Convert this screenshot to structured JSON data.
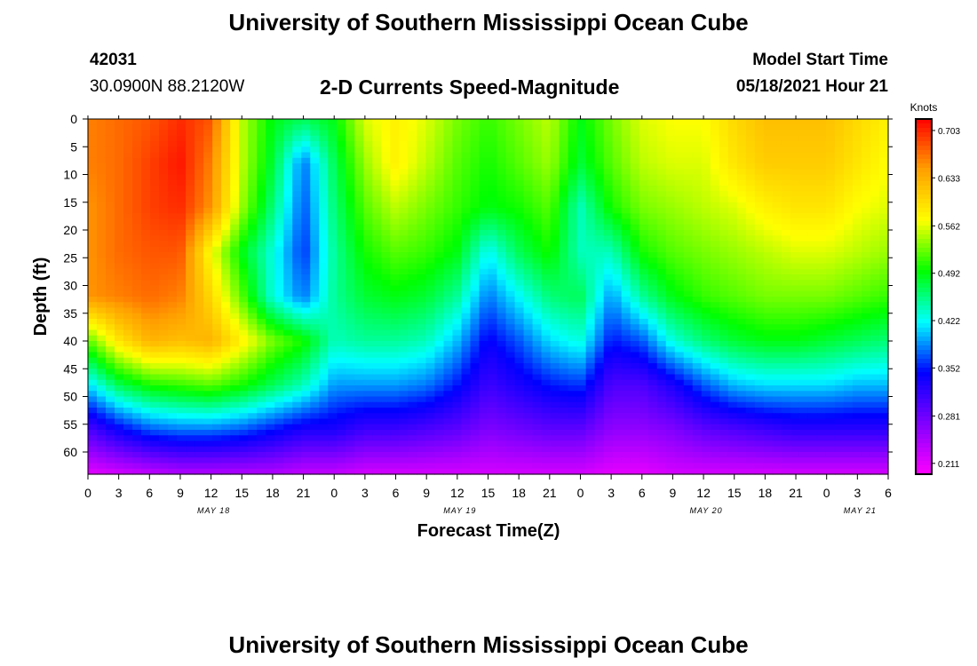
{
  "header": {
    "title": "University of Southern Mississippi Ocean Cube",
    "station_id": "42031",
    "coordinates": "30.0900N  88.2120W",
    "subtitle": "2-D Currents Speed-Magnitude",
    "model_start_label": "Model Start Time",
    "model_start_value": "05/18/2021 Hour 21"
  },
  "footer": {
    "title": "University of Southern Mississippi Ocean Cube"
  },
  "chart_data": {
    "type": "heatmap",
    "xlabel": "Forecast Time(Z)",
    "ylabel": "Depth (ft)",
    "x_tick_labels": [
      "0",
      "3",
      "6",
      "9",
      "12",
      "15",
      "18",
      "21",
      "0",
      "3",
      "6",
      "9",
      "12",
      "15",
      "18",
      "21",
      "0",
      "3",
      "6",
      "9",
      "12",
      "15",
      "18",
      "21",
      "0",
      "3",
      "6"
    ],
    "date_labels": [
      {
        "label": "MAY 18",
        "tick_index": 4
      },
      {
        "label": "MAY 19",
        "tick_index": 12
      },
      {
        "label": "MAY 20",
        "tick_index": 20
      },
      {
        "label": "MAY 21",
        "tick_index": 25
      }
    ],
    "x_range_hours": [
      0,
      78
    ],
    "y_ticks": [
      0,
      5,
      10,
      15,
      20,
      25,
      30,
      35,
      40,
      45,
      50,
      55,
      60
    ],
    "ylim": [
      0,
      64
    ],
    "y_inverted": true,
    "colorbar": {
      "unit": "Knots",
      "tick_labels": [
        "0.703",
        "0.633",
        "0.562",
        "0.492",
        "0.422",
        "0.352",
        "0.281",
        "0.211"
      ],
      "range": [
        0.195,
        0.72
      ],
      "colormap": [
        "#ff00ff",
        "#8000ff",
        "#0000ff",
        "#00ffff",
        "#00ff00",
        "#ffff00",
        "#ffa000",
        "#ff0000"
      ]
    },
    "depths_ft": [
      0,
      8,
      16,
      24,
      32,
      40,
      48,
      56,
      64
    ],
    "times_hours": [
      0,
      3,
      6,
      9,
      12,
      15,
      18,
      21,
      24,
      27,
      30,
      33,
      36,
      39,
      42,
      45,
      48,
      51,
      54,
      57,
      60,
      63,
      66,
      69,
      72,
      75,
      78
    ],
    "speed_knots": [
      [
        0.66,
        0.67,
        0.68,
        0.7,
        0.68,
        0.55,
        0.49,
        0.47,
        0.49,
        0.56,
        0.58,
        0.56,
        0.53,
        0.51,
        0.53,
        0.55,
        0.49,
        0.53,
        0.56,
        0.57,
        0.57,
        0.6,
        0.62,
        0.62,
        0.62,
        0.6,
        0.58
      ],
      [
        0.66,
        0.67,
        0.69,
        0.71,
        0.66,
        0.55,
        0.48,
        0.38,
        0.47,
        0.54,
        0.58,
        0.55,
        0.52,
        0.5,
        0.52,
        0.54,
        0.48,
        0.52,
        0.55,
        0.56,
        0.56,
        0.59,
        0.61,
        0.61,
        0.61,
        0.59,
        0.57
      ],
      [
        0.65,
        0.67,
        0.69,
        0.7,
        0.65,
        0.54,
        0.46,
        0.37,
        0.46,
        0.52,
        0.55,
        0.53,
        0.51,
        0.49,
        0.5,
        0.52,
        0.44,
        0.5,
        0.53,
        0.54,
        0.55,
        0.56,
        0.58,
        0.59,
        0.59,
        0.57,
        0.56
      ],
      [
        0.65,
        0.67,
        0.68,
        0.68,
        0.57,
        0.49,
        0.43,
        0.36,
        0.45,
        0.5,
        0.52,
        0.51,
        0.49,
        0.42,
        0.47,
        0.5,
        0.44,
        0.44,
        0.5,
        0.52,
        0.53,
        0.54,
        0.55,
        0.56,
        0.56,
        0.55,
        0.54
      ],
      [
        0.65,
        0.66,
        0.67,
        0.66,
        0.6,
        0.52,
        0.43,
        0.38,
        0.45,
        0.48,
        0.49,
        0.48,
        0.45,
        0.38,
        0.42,
        0.46,
        0.47,
        0.39,
        0.45,
        0.49,
        0.51,
        0.52,
        0.53,
        0.53,
        0.53,
        0.52,
        0.51
      ],
      [
        0.52,
        0.59,
        0.63,
        0.62,
        0.63,
        0.58,
        0.53,
        0.5,
        0.44,
        0.45,
        0.45,
        0.44,
        0.4,
        0.34,
        0.37,
        0.41,
        0.43,
        0.35,
        0.37,
        0.43,
        0.46,
        0.48,
        0.49,
        0.49,
        0.48,
        0.47,
        0.46
      ],
      [
        0.41,
        0.47,
        0.5,
        0.51,
        0.52,
        0.5,
        0.47,
        0.44,
        0.39,
        0.39,
        0.39,
        0.38,
        0.35,
        0.31,
        0.33,
        0.35,
        0.36,
        0.3,
        0.3,
        0.33,
        0.37,
        0.4,
        0.41,
        0.41,
        0.41,
        0.4,
        0.4
      ],
      [
        0.3,
        0.34,
        0.37,
        0.38,
        0.38,
        0.37,
        0.35,
        0.33,
        0.33,
        0.31,
        0.31,
        0.3,
        0.29,
        0.27,
        0.28,
        0.29,
        0.29,
        0.26,
        0.26,
        0.27,
        0.29,
        0.3,
        0.31,
        0.32,
        0.32,
        0.32,
        0.32
      ],
      [
        0.21,
        0.22,
        0.23,
        0.24,
        0.24,
        0.24,
        0.24,
        0.23,
        0.23,
        0.22,
        0.22,
        0.22,
        0.22,
        0.22,
        0.22,
        0.22,
        0.22,
        0.21,
        0.21,
        0.22,
        0.22,
        0.22,
        0.22,
        0.22,
        0.22,
        0.22,
        0.22
      ]
    ]
  }
}
